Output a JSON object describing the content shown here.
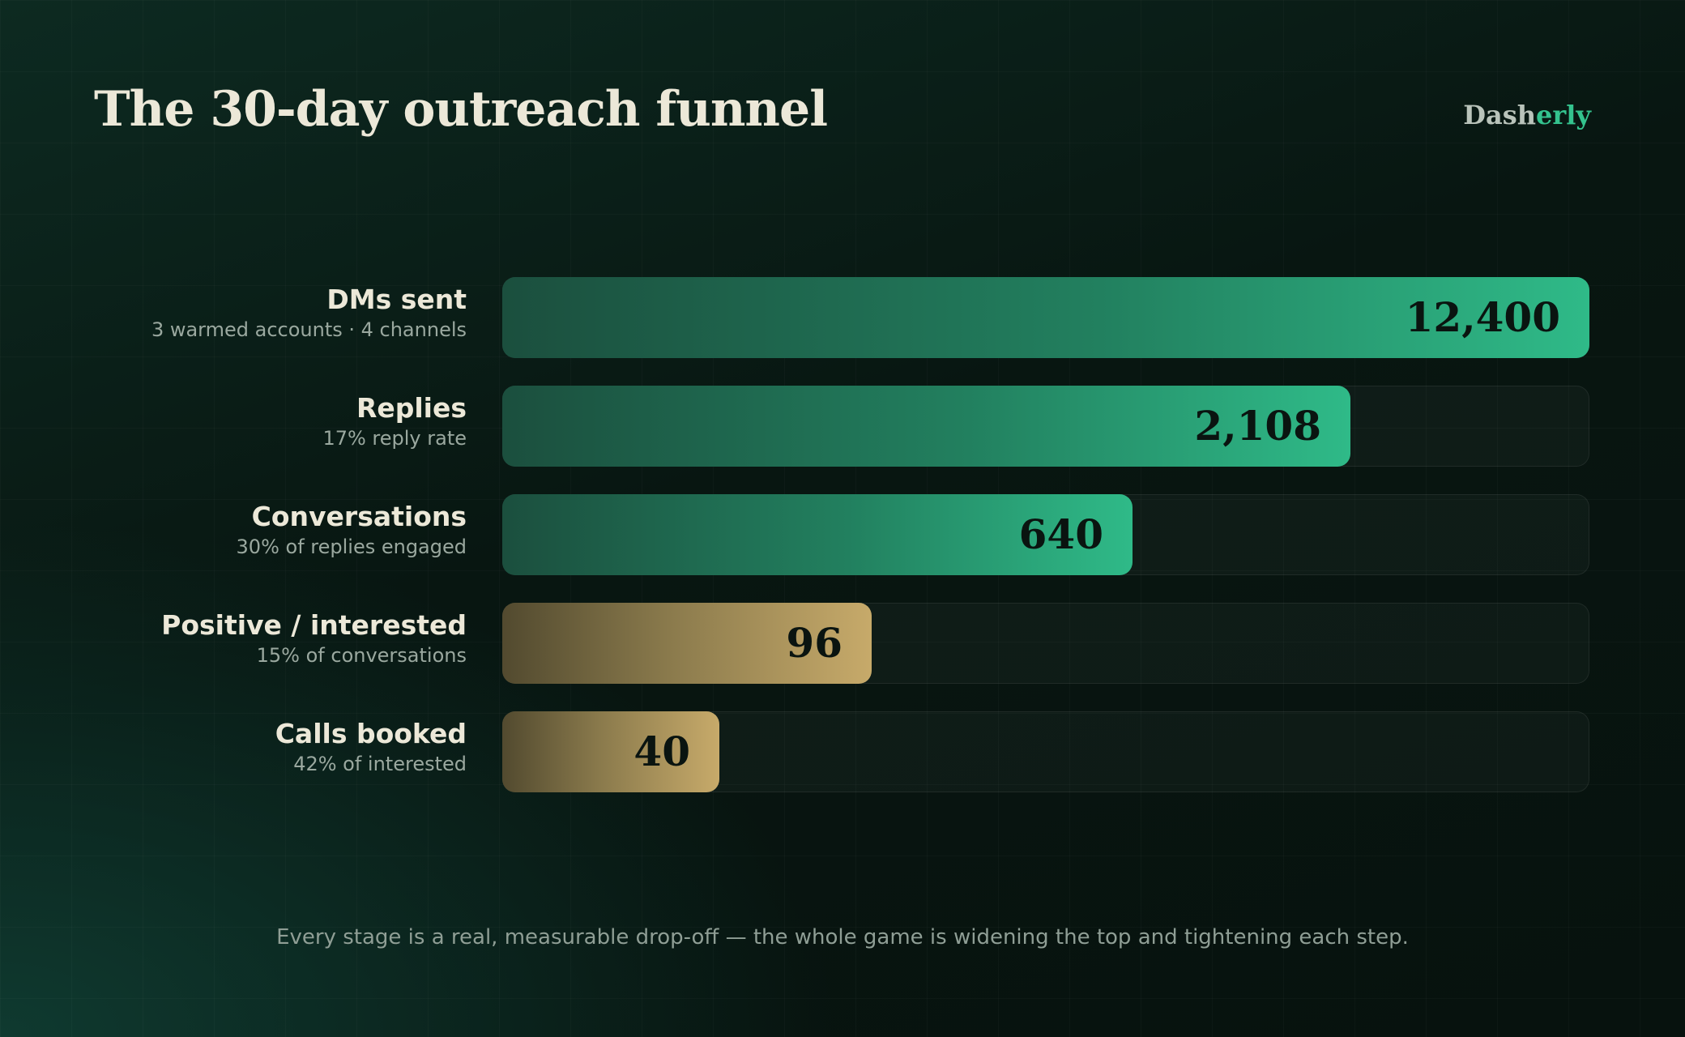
{
  "title": "The 30-day outreach funnel",
  "brand": {
    "part1": "Dash",
    "part2": "erly"
  },
  "footer": "Every stage is a real, measurable drop-off — the whole game is widening the top and tightening each step.",
  "colors": {
    "green": "#2fba88",
    "gold": "#c7aa6a",
    "title": "#ece8d8"
  },
  "chart_data": {
    "type": "bar",
    "orientation": "horizontal",
    "title": "The 30-day outreach funnel",
    "categories": [
      "DMs sent",
      "Replies",
      "Conversations",
      "Positive / interested",
      "Calls booked"
    ],
    "subtitles": [
      "3 warmed accounts · 4 channels",
      "17% reply rate",
      "30% of replies engaged",
      "15% of conversations",
      "42% of interested"
    ],
    "values": [
      12400,
      2108,
      640,
      96,
      40
    ],
    "value_labels": [
      "12,400",
      "2,108",
      "640",
      "96",
      "40"
    ],
    "bar_fill_fraction": [
      1.0,
      0.78,
      0.58,
      0.34,
      0.2
    ],
    "bar_colors": [
      "green",
      "green",
      "green",
      "gold",
      "gold"
    ],
    "xlabel": "",
    "ylabel": "",
    "grid": false
  }
}
